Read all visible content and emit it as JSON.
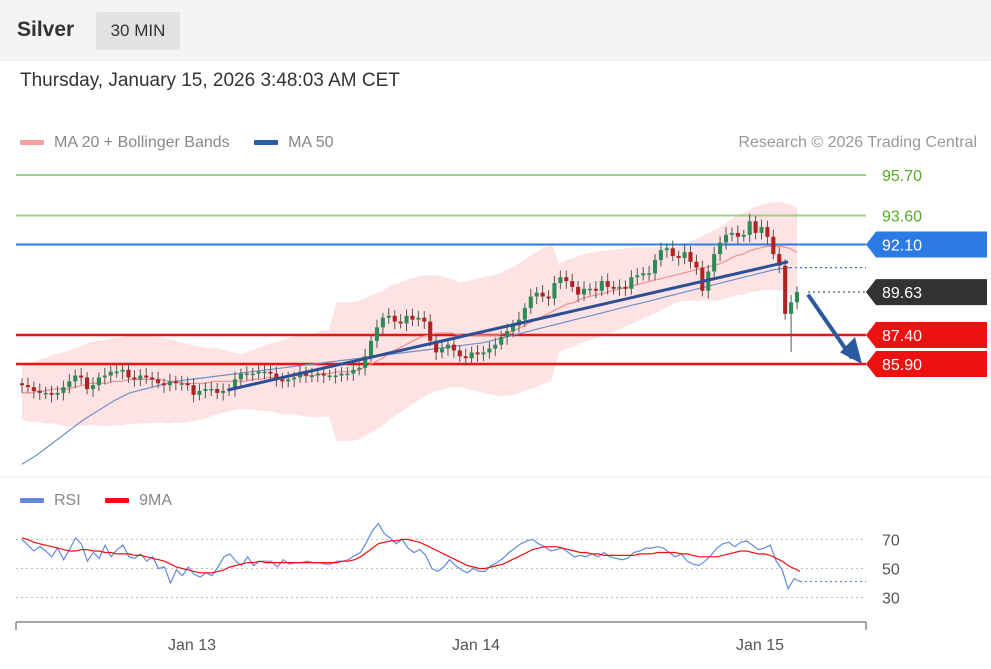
{
  "header": {
    "instrument": "Silver",
    "interval": "30 MIN"
  },
  "timestamp": "Thursday, January 15, 2026 3:48:03 AM CET",
  "legend": {
    "ma20": "MA 20 + Bollinger Bands",
    "ma50": "MA 50"
  },
  "copyright": "Research © 2026 Trading Central",
  "rsi_legend": {
    "rsi": "RSI",
    "ma9": "9MA"
  },
  "colors": {
    "ma20": "#f08080",
    "ma50": "#2c5aa0",
    "up": "#2e8b57",
    "down": "#b22222",
    "support": "#ee1111",
    "resistance": "#9ecf8a",
    "pivot": "#2c7be5",
    "last": "#333333",
    "rsi": "#6688dd"
  },
  "chart_data": [
    {
      "type": "candlestick",
      "title": "Silver",
      "interval": "30 MIN",
      "x_ticks": [
        "Jan 13",
        "Jan 14",
        "Jan 15"
      ],
      "price_levels": [
        {
          "label": "95.70",
          "value": 95.7,
          "kind": "resistance"
        },
        {
          "label": "93.60",
          "value": 93.6,
          "kind": "resistance"
        },
        {
          "label": "92.10",
          "value": 92.1,
          "kind": "pivot"
        },
        {
          "label": "89.63",
          "value": 89.63,
          "kind": "last"
        },
        {
          "label": "87.40",
          "value": 87.4,
          "kind": "support"
        },
        {
          "label": "85.90",
          "value": 85.9,
          "kind": "support"
        }
      ],
      "ylim": [
        80.4,
        97.0
      ],
      "close": [
        84.8,
        84.7,
        84.5,
        84.4,
        84.4,
        84.3,
        84.4,
        84.7,
        85.0,
        85.3,
        85.2,
        84.6,
        84.8,
        85.2,
        85.3,
        85.5,
        85.5,
        85.6,
        85.2,
        85.1,
        85.3,
        85.2,
        85.1,
        84.9,
        84.8,
        85.0,
        84.9,
        84.9,
        84.8,
        84.3,
        84.5,
        84.6,
        84.6,
        84.4,
        84.5,
        84.6,
        85.1,
        85.4,
        85.4,
        85.4,
        85.5,
        85.5,
        85.4,
        85.1,
        85.0,
        85.1,
        85.2,
        85.5,
        85.3,
        85.3,
        85.4,
        85.3,
        85.3,
        85.3,
        85.4,
        85.4,
        85.6,
        85.7,
        86.3,
        87.1,
        87.8,
        88.3,
        88.4,
        88.1,
        88.0,
        88.4,
        88.2,
        88.3,
        88.1,
        87.1,
        86.5,
        86.7,
        86.9,
        86.6,
        86.3,
        86.2,
        86.5,
        86.4,
        86.5,
        86.7,
        86.9,
        87.3,
        87.6,
        87.9,
        88.2,
        88.8,
        89.4,
        89.6,
        89.4,
        89.3,
        90.1,
        90.4,
        90.2,
        89.9,
        89.5,
        89.8,
        89.8,
        89.7,
        90.2,
        89.9,
        89.8,
        89.9,
        89.8,
        90.4,
        90.5,
        90.6,
        90.6,
        91.3,
        91.8,
        91.9,
        91.5,
        91.4,
        91.7,
        91.2,
        90.9,
        89.7,
        90.7,
        91.6,
        92.2,
        92.6,
        92.7,
        92.5,
        92.6,
        93.3,
        92.7,
        93.0,
        92.5,
        91.6,
        91.0,
        88.5,
        89.1,
        89.63
      ],
      "ma20": [
        84.4,
        84.4,
        84.5,
        84.5,
        84.6,
        84.6,
        84.6,
        84.7,
        84.8,
        84.9,
        84.9,
        84.9,
        85.0,
        85.0,
        85.1,
        85.1,
        85.1,
        85.1,
        85.1,
        85.0,
        85.0,
        84.9,
        84.9,
        84.9,
        84.9,
        85.0,
        85.0,
        85.0,
        85.0,
        85.0,
        85.1,
        85.1,
        85.2,
        85.2,
        85.2,
        85.3,
        85.3,
        85.3,
        85.3,
        85.4,
        85.4,
        85.5,
        85.5,
        85.5,
        85.6,
        85.8,
        86.0,
        86.2,
        86.5,
        86.7,
        86.9,
        87.1,
        87.3,
        87.4,
        87.5,
        87.5,
        87.5,
        87.4,
        87.4,
        87.4,
        87.4,
        87.4,
        87.4,
        87.5,
        87.6,
        87.8,
        88.0,
        88.2,
        88.4,
        88.6,
        88.8,
        89.0,
        89.1,
        89.3,
        89.4,
        89.5,
        89.6,
        89.7,
        89.8,
        89.9,
        90.0,
        90.1,
        90.2,
        90.3,
        90.4,
        90.5,
        90.6,
        90.7,
        90.8,
        90.9,
        91.0,
        91.1,
        91.3,
        91.5,
        91.6,
        91.8,
        91.9,
        92.0,
        92.0,
        92.0,
        91.9,
        91.7
      ],
      "ma50": [
        80.7,
        81.2,
        81.8,
        82.4,
        83.0,
        83.5,
        84.0,
        84.4,
        84.6,
        84.8,
        85.0,
        85.1,
        85.2,
        85.3,
        85.4,
        85.5,
        85.6,
        85.7,
        85.8,
        85.9,
        86.0,
        86.1,
        86.2,
        86.3,
        86.4,
        86.5,
        86.6,
        86.7,
        86.8,
        86.9,
        87.0,
        87.2,
        87.4,
        87.6,
        87.8,
        88.0,
        88.2,
        88.4,
        88.6,
        88.8,
        89.0,
        89.2,
        89.4,
        89.6,
        89.8,
        90.0,
        90.2,
        90.4,
        90.6,
        90.8,
        90.9
      ],
      "trendlines": [
        {
          "from": [
            "Jan 13",
            84.55
          ],
          "to": [
            "Jan 15",
            91.2
          ]
        }
      ]
    },
    {
      "type": "line",
      "title": "RSI",
      "y_ticks": [
        30,
        50,
        70
      ],
      "ylim": [
        20,
        82
      ],
      "series": [
        {
          "name": "RSI",
          "values": [
            70,
            66,
            62,
            65,
            62,
            58,
            64,
            56,
            63,
            71,
            67,
            55,
            61,
            57,
            66,
            58,
            63,
            66,
            58,
            57,
            60,
            55,
            58,
            50,
            51,
            40,
            49,
            45,
            51,
            46,
            44,
            47,
            45,
            51,
            58,
            60,
            55,
            52,
            58,
            52,
            55,
            55,
            55,
            51,
            56,
            53,
            54,
            54,
            55,
            54,
            54,
            53,
            53,
            55,
            55,
            56,
            59,
            61,
            68,
            76,
            81,
            74,
            71,
            67,
            70,
            64,
            61,
            63,
            59,
            50,
            48,
            51,
            56,
            52,
            49,
            47,
            50,
            48,
            48,
            52,
            54,
            57,
            61,
            64,
            67,
            69,
            70,
            67,
            65,
            62,
            63,
            64,
            61,
            58,
            59,
            58,
            60,
            58,
            61,
            58,
            57,
            56,
            57,
            61,
            62,
            64,
            64,
            65,
            64,
            61,
            58,
            60,
            55,
            53,
            52,
            55,
            59,
            64,
            67,
            68,
            65,
            68,
            69,
            66,
            63,
            64,
            66,
            55,
            49,
            36,
            43,
            41
          ]
        },
        {
          "name": "9MA",
          "values": [
            71,
            70,
            68,
            67,
            66,
            65,
            64,
            63,
            62,
            62,
            63,
            63,
            62,
            62,
            61,
            61,
            60,
            60,
            60,
            59,
            59,
            58,
            57,
            56,
            55,
            53,
            51,
            50,
            49,
            48,
            47,
            47,
            47,
            48,
            49,
            51,
            52,
            53,
            54,
            54,
            55,
            54,
            54,
            54,
            54,
            54,
            54,
            54,
            54,
            54,
            54,
            54,
            54,
            54,
            55,
            55,
            56,
            58,
            61,
            64,
            67,
            68,
            69,
            69,
            70,
            70,
            69,
            68,
            66,
            64,
            62,
            60,
            58,
            56,
            54,
            52,
            51,
            50,
            50,
            51,
            52,
            53,
            55,
            57,
            59,
            61,
            63,
            64,
            65,
            65,
            65,
            64,
            63,
            62,
            61,
            61,
            60,
            60,
            59,
            59,
            59,
            59,
            59,
            59,
            60,
            60,
            60,
            61,
            61,
            61,
            61,
            60,
            60,
            59,
            58,
            58,
            58,
            58,
            59,
            60,
            61,
            62,
            62,
            61,
            60,
            60,
            59,
            57,
            55,
            52,
            50,
            48
          ]
        }
      ]
    }
  ]
}
